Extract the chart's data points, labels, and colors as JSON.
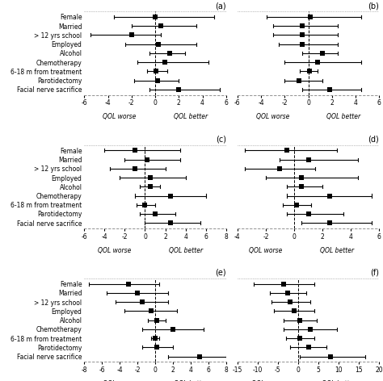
{
  "labels": [
    "Female",
    "Married",
    "> 12 yrs school",
    "Employed",
    "Alcohol",
    "Chemotherapy",
    "6-18 m from treatment",
    "Parotidectomy",
    "Facial nerve sacrifice"
  ],
  "panels": [
    {
      "label": "(a)",
      "means": [
        0.0,
        0.5,
        -2.0,
        0.3,
        1.2,
        0.8,
        0.1,
        0.2,
        2.0
      ],
      "lower": [
        -3.5,
        -2.0,
        -5.5,
        -2.5,
        -0.5,
        -1.5,
        -0.7,
        -1.8,
        -0.5
      ],
      "upper": [
        5.0,
        3.5,
        0.5,
        3.5,
        2.5,
        4.5,
        1.0,
        2.0,
        5.5
      ],
      "xlim": [
        -6,
        6
      ],
      "xticks": [
        -6,
        -4,
        -2,
        0,
        2,
        4,
        6
      ]
    },
    {
      "label": "(b)",
      "means": [
        0.2,
        -0.5,
        -0.5,
        -0.5,
        1.2,
        0.8,
        0.1,
        -0.8,
        1.8
      ],
      "lower": [
        -3.5,
        -3.0,
        -3.0,
        -2.5,
        -0.5,
        -2.0,
        -0.7,
        -2.0,
        -0.5
      ],
      "upper": [
        4.5,
        2.5,
        2.5,
        2.5,
        2.5,
        4.5,
        0.8,
        1.2,
        4.5
      ],
      "xlim": [
        -6,
        6
      ],
      "xticks": [
        -6,
        -4,
        -2,
        0,
        2,
        4,
        6
      ]
    },
    {
      "label": "(c)",
      "means": [
        -1.0,
        0.2,
        -1.0,
        0.5,
        0.5,
        2.5,
        0.0,
        1.0,
        2.5
      ],
      "lower": [
        -4.0,
        -2.0,
        -3.5,
        -2.5,
        -0.5,
        -1.0,
        -0.8,
        -0.5,
        0.0
      ],
      "upper": [
        3.5,
        3.5,
        2.0,
        4.0,
        1.5,
        6.0,
        1.0,
        3.0,
        5.5
      ],
      "xlim": [
        -6,
        8
      ],
      "xticks": [
        -6,
        -4,
        -2,
        0,
        2,
        4,
        6,
        8
      ]
    },
    {
      "label": "(d)",
      "means": [
        -0.5,
        1.0,
        -1.0,
        0.5,
        0.5,
        2.5,
        0.2,
        1.0,
        2.5
      ],
      "lower": [
        -3.5,
        -1.0,
        -3.5,
        -2.0,
        -0.5,
        -0.5,
        -0.8,
        -0.5,
        0.5
      ],
      "upper": [
        3.0,
        4.5,
        1.5,
        4.5,
        2.0,
        5.5,
        1.2,
        3.5,
        5.5
      ],
      "xlim": [
        -4,
        6
      ],
      "xticks": [
        -4,
        -2,
        0,
        2,
        4,
        6
      ]
    },
    {
      "label": "(e)",
      "means": [
        -3.0,
        -2.0,
        -1.5,
        -0.5,
        0.2,
        2.0,
        0.0,
        0.2,
        5.0
      ],
      "lower": [
        -7.5,
        -5.5,
        -4.5,
        -3.5,
        -0.8,
        -1.5,
        -0.5,
        -1.5,
        1.5
      ],
      "upper": [
        0.5,
        1.5,
        1.5,
        2.5,
        1.2,
        5.5,
        0.5,
        2.0,
        8.0
      ],
      "xlim": [
        -8,
        8
      ],
      "xticks": [
        -8,
        -6,
        -4,
        -2,
        0,
        2,
        4,
        6,
        8
      ]
    },
    {
      "label": "(f)",
      "means": [
        -3.5,
        -2.5,
        -2.0,
        -1.0,
        0.5,
        3.0,
        0.5,
        2.5,
        8.0
      ],
      "lower": [
        -11.0,
        -7.0,
        -6.5,
        -6.0,
        -3.5,
        -3.5,
        -3.0,
        -2.0,
        0.5
      ],
      "upper": [
        4.0,
        2.0,
        3.0,
        4.0,
        4.5,
        9.5,
        4.0,
        7.0,
        16.5
      ],
      "xlim": [
        -15,
        20
      ],
      "xticks": [
        -15,
        -10,
        -5,
        0,
        5,
        10,
        15,
        20
      ]
    }
  ],
  "xlabel_worse": "QOL worse",
  "xlabel_better": "QOL better"
}
